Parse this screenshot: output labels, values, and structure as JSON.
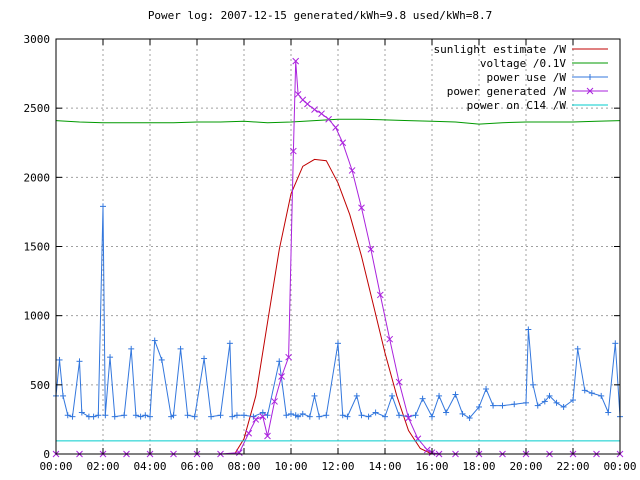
{
  "chart_data": {
    "type": "line",
    "title": "Power log: 2007-12-15 generated/kWh=9.8 used/kWh=8.7",
    "xlabel": "",
    "ylabel": "",
    "x_ticks": [
      "00:00",
      "02:00",
      "04:00",
      "06:00",
      "08:00",
      "10:00",
      "12:00",
      "14:00",
      "16:00",
      "18:00",
      "20:00",
      "22:00",
      "00:00"
    ],
    "y_ticks": [
      0,
      500,
      1000,
      1500,
      2000,
      2500,
      3000
    ],
    "xlim_hours": [
      0,
      24
    ],
    "ylim": [
      0,
      3000
    ],
    "grid": true,
    "legend_position": "top-right",
    "series": [
      {
        "name": "sunlight estimate /W",
        "color": "#c00000",
        "marker": "none",
        "x": [
          7.6,
          8.0,
          8.5,
          9.0,
          9.5,
          10.0,
          10.5,
          11.0,
          11.5,
          12.0,
          12.5,
          13.0,
          13.5,
          14.0,
          14.5,
          15.0,
          15.5,
          16.0
        ],
        "y": [
          0,
          110,
          420,
          950,
          1480,
          1880,
          2080,
          2130,
          2120,
          1960,
          1730,
          1430,
          1080,
          730,
          420,
          170,
          40,
          0
        ]
      },
      {
        "name": "voltage /0.1V",
        "color": "#009900",
        "marker": "none",
        "x": [
          0,
          1,
          2,
          3,
          4,
          5,
          6,
          7,
          8,
          9,
          10,
          11,
          12,
          13,
          14,
          15,
          16,
          17,
          18,
          19,
          20,
          21,
          22,
          23,
          24
        ],
        "y": [
          2410,
          2400,
          2395,
          2395,
          2395,
          2395,
          2400,
          2400,
          2405,
          2395,
          2400,
          2410,
          2420,
          2420,
          2415,
          2410,
          2405,
          2400,
          2385,
          2395,
          2400,
          2400,
          2400,
          2405,
          2410
        ]
      },
      {
        "name": "power use /W",
        "color": "#3377dd",
        "marker": "plus",
        "x": [
          0.0,
          0.15,
          0.3,
          0.5,
          0.7,
          1.0,
          1.1,
          1.4,
          1.6,
          1.8,
          2.0,
          2.1,
          2.3,
          2.5,
          2.9,
          3.2,
          3.4,
          3.6,
          3.8,
          4.0,
          4.2,
          4.5,
          4.9,
          5.0,
          5.3,
          5.6,
          5.9,
          6.3,
          6.6,
          7.0,
          7.4,
          7.5,
          7.7,
          8.0,
          8.4,
          8.8,
          9.0,
          9.5,
          9.8,
          10.0,
          10.2,
          10.3,
          10.5,
          10.8,
          11.0,
          11.2,
          11.5,
          12.0,
          12.2,
          12.4,
          12.8,
          13.0,
          13.3,
          13.6,
          14.0,
          14.3,
          14.6,
          15.0,
          15.3,
          15.6,
          16.0,
          16.3,
          16.6,
          17.0,
          17.3,
          17.6,
          18.0,
          18.3,
          18.6,
          19.0,
          19.5,
          20.0,
          20.1,
          20.3,
          20.5,
          20.8,
          21.0,
          21.3,
          21.6,
          22.0,
          22.2,
          22.5,
          22.8,
          23.2,
          23.5,
          23.8,
          24.0
        ],
        "y": [
          420,
          680,
          420,
          280,
          270,
          670,
          300,
          270,
          270,
          280,
          1790,
          280,
          700,
          270,
          280,
          760,
          280,
          270,
          280,
          270,
          820,
          680,
          270,
          280,
          760,
          280,
          270,
          690,
          270,
          280,
          800,
          270,
          280,
          280,
          270,
          300,
          280,
          670,
          280,
          290,
          280,
          270,
          290,
          270,
          420,
          270,
          280,
          800,
          280,
          270,
          420,
          280,
          270,
          300,
          270,
          420,
          280,
          270,
          280,
          400,
          270,
          420,
          300,
          430,
          290,
          260,
          340,
          470,
          350,
          350,
          360,
          370,
          900,
          500,
          350,
          380,
          420,
          370,
          340,
          390,
          760,
          460,
          440,
          420,
          300,
          800,
          270
        ]
      },
      {
        "name": "power generated /W",
        "color": "#aa22dd",
        "marker": "x",
        "x": [
          0,
          1,
          2,
          3,
          4,
          5,
          6,
          7,
          7.8,
          8.2,
          8.5,
          8.8,
          9.0,
          9.3,
          9.6,
          9.9,
          10.1,
          10.2,
          10.3,
          10.5,
          10.7,
          11.0,
          11.3,
          11.6,
          11.9,
          12.2,
          12.6,
          13.0,
          13.4,
          13.8,
          14.2,
          14.6,
          15.0,
          15.4,
          15.8,
          16.0,
          16.3,
          17,
          18,
          19,
          20,
          21,
          22,
          23,
          24
        ],
        "y": [
          0,
          0,
          0,
          0,
          0,
          0,
          0,
          0,
          10,
          150,
          250,
          270,
          130,
          380,
          560,
          700,
          2190,
          2840,
          2600,
          2560,
          2530,
          2490,
          2460,
          2420,
          2360,
          2250,
          2050,
          1780,
          1480,
          1150,
          830,
          520,
          260,
          110,
          30,
          10,
          0,
          0,
          0,
          0,
          0,
          0,
          0,
          0,
          0
        ]
      },
      {
        "name": "power on C14 /W",
        "color": "#00cccc",
        "marker": "none",
        "x": [
          0,
          24
        ],
        "y": [
          95,
          95
        ]
      }
    ]
  }
}
